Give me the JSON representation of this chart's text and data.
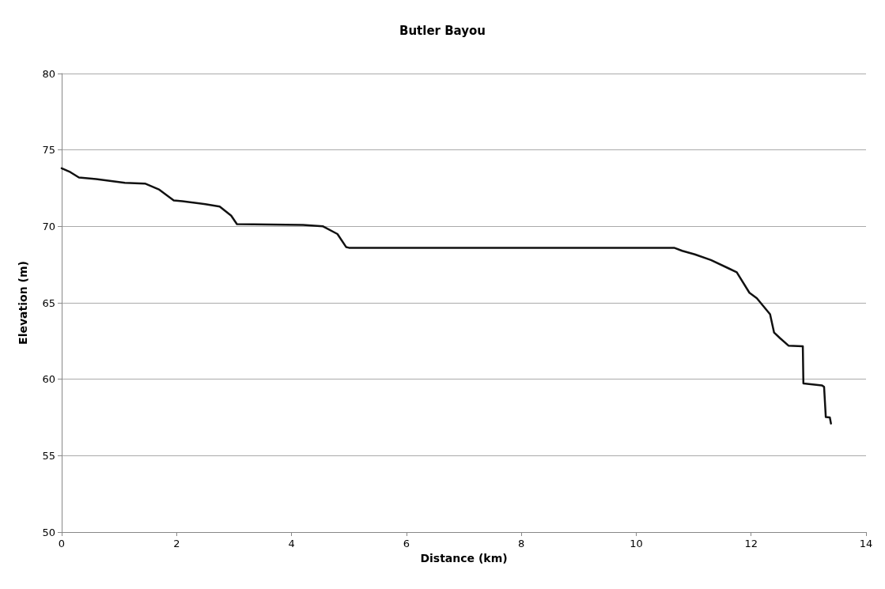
{
  "chart_data": {
    "type": "line",
    "title": "Butler Bayou",
    "xlabel": "Distance (km)",
    "ylabel": "Elevation (m)",
    "series": [
      {
        "color": "#111111",
        "x": [
          0,
          0.15,
          0.3,
          0.6,
          1.1,
          1.45,
          1.7,
          1.95,
          2.1,
          2.5,
          2.75,
          2.95,
          3.05,
          4.2,
          4.55,
          4.8,
          4.95,
          5.0,
          10.66,
          10.8,
          11.02,
          11.3,
          11.61,
          11.75,
          11.97,
          12.1,
          12.33,
          12.4,
          12.5,
          12.65,
          12.9,
          12.91,
          13.23,
          13.27,
          13.3,
          13.37,
          13.39
        ],
        "values": [
          73.8,
          73.55,
          73.2,
          73.1,
          72.85,
          72.8,
          72.4,
          71.7,
          71.65,
          71.45,
          71.3,
          70.7,
          70.15,
          70.1,
          70.0,
          69.5,
          68.65,
          68.6,
          68.6,
          68.4,
          68.17,
          67.8,
          67.25,
          67.0,
          65.66,
          65.3,
          64.25,
          63.05,
          62.7,
          62.2,
          62.15,
          59.72,
          59.6,
          59.5,
          57.52,
          57.5,
          57.1
        ]
      }
    ],
    "xlim": [
      0,
      14
    ],
    "xticks": [
      0,
      2,
      4,
      6,
      8,
      10,
      12,
      14
    ],
    "ylim": [
      50,
      80
    ],
    "yticks": [
      50,
      55,
      60,
      65,
      70,
      75,
      80
    ],
    "grid": "y",
    "marker": "none",
    "line_style": "solid"
  }
}
